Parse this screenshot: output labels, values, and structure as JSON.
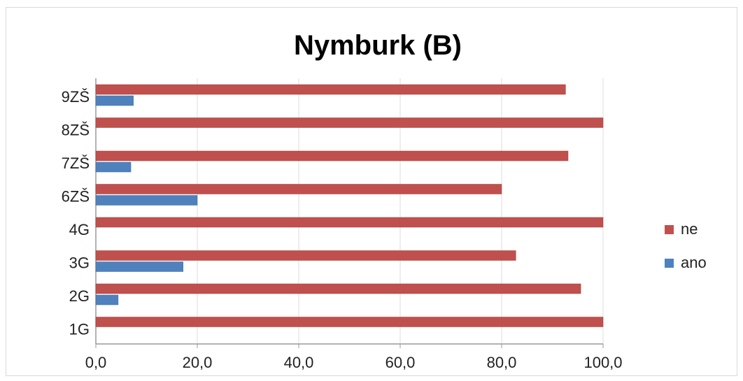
{
  "chart_data": {
    "type": "bar",
    "orientation": "horizontal",
    "title": "Nymburk (B)",
    "categories": [
      "9ZŠ",
      "8ZŠ",
      "7ZŠ",
      "6ZŠ",
      "4G",
      "3G",
      "2G",
      "1G"
    ],
    "series": [
      {
        "name": "ne",
        "color": "#c0504d",
        "values": [
          92.6,
          100.0,
          93.1,
          80.0,
          100.0,
          82.8,
          95.6,
          100.0
        ]
      },
      {
        "name": "ano",
        "color": "#4f81bd",
        "values": [
          7.4,
          0.0,
          6.9,
          20.0,
          0.0,
          17.2,
          4.4,
          0.0
        ]
      }
    ],
    "xlim": [
      0,
      100
    ],
    "x_ticks": [
      "0,0",
      "20,0",
      "40,0",
      "60,0",
      "80,0",
      "100,0"
    ],
    "grid": true,
    "legend_position": "right"
  }
}
